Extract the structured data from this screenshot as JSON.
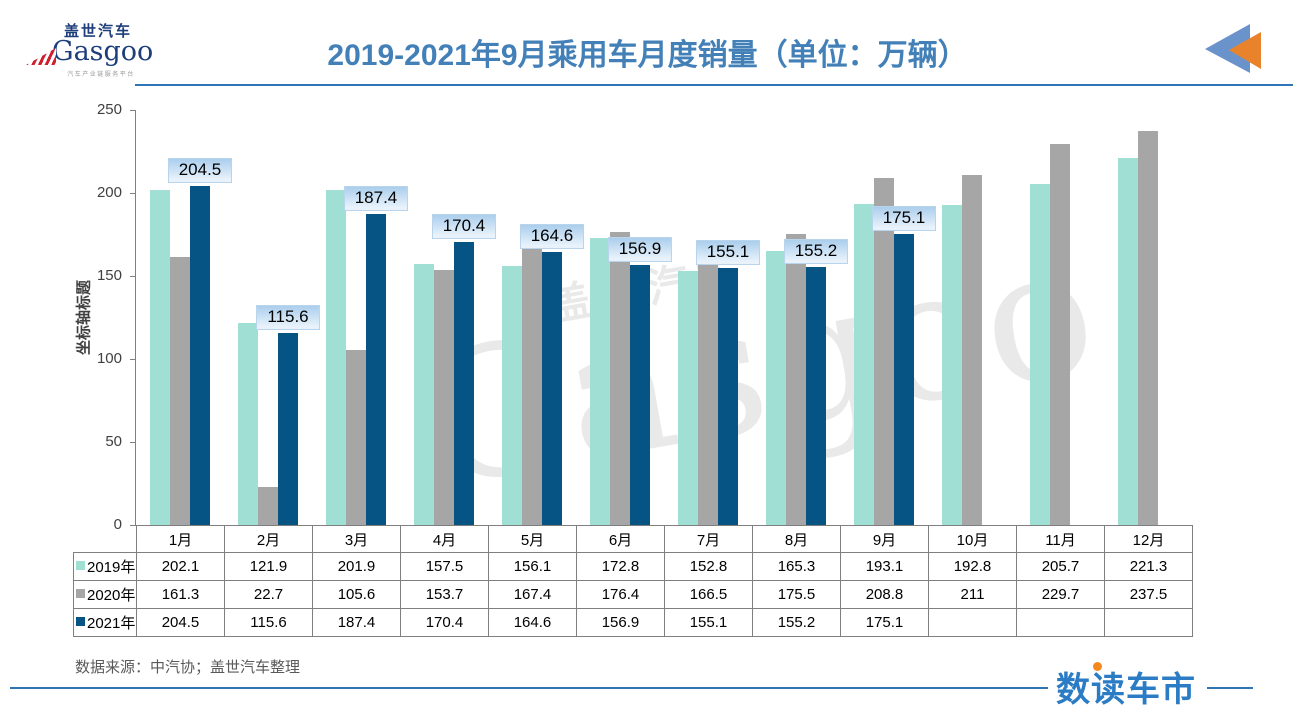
{
  "header": {
    "logo": {
      "brand_cn": "盖世汽车",
      "brand_en": "Gasgoo",
      "tagline": "汽车产业链服务平台"
    },
    "title": "2019-2021年9月乘用车月度销量（单位：万辆）"
  },
  "chart_data": {
    "type": "bar",
    "title": "2019-2021年9月乘用车月度销量（单位：万辆）",
    "ylabel": "坐标轴标题",
    "ylim": [
      0,
      250
    ],
    "yticks": [
      0,
      50,
      100,
      150,
      200,
      250
    ],
    "grid": false,
    "legend_position": "table-left",
    "categories": [
      "1月",
      "2月",
      "3月",
      "4月",
      "5月",
      "6月",
      "7月",
      "8月",
      "9月",
      "10月",
      "11月",
      "12月"
    ],
    "series": [
      {
        "name": "2019年",
        "color": "#9fdfd4",
        "values": [
          202.1,
          121.9,
          201.9,
          157.5,
          156.1,
          172.8,
          152.8,
          165.3,
          193.1,
          192.8,
          205.7,
          221.3
        ]
      },
      {
        "name": "2020年",
        "color": "#a6a6a6",
        "values": [
          161.3,
          22.7,
          105.6,
          153.7,
          167.4,
          176.4,
          166.5,
          175.5,
          208.8,
          211,
          229.7,
          237.5
        ]
      },
      {
        "name": "2021年",
        "color": "#055484",
        "data_labels": true,
        "values": [
          204.5,
          115.6,
          187.4,
          170.4,
          164.6,
          156.9,
          155.1,
          155.2,
          175.1,
          null,
          null,
          null
        ]
      }
    ]
  },
  "footer": {
    "source": "数据来源：中汽协；盖世汽车整理",
    "brand": "数读车市"
  },
  "colors": {
    "title_blue": "#4380b8",
    "divider_blue": "#2e75b6",
    "bar_2019": "#9fdfd4",
    "bar_2020": "#a6a6a6",
    "bar_2021": "#055484",
    "label_bg_top": "#abceec",
    "label_bg_bottom": "#e9f2fb",
    "icon_blue": "#6a93cc",
    "icon_orange": "#e8832c",
    "brand_blue": "#2b7cc4",
    "brand_orange": "#f5871f",
    "source_gray": "#595959"
  }
}
